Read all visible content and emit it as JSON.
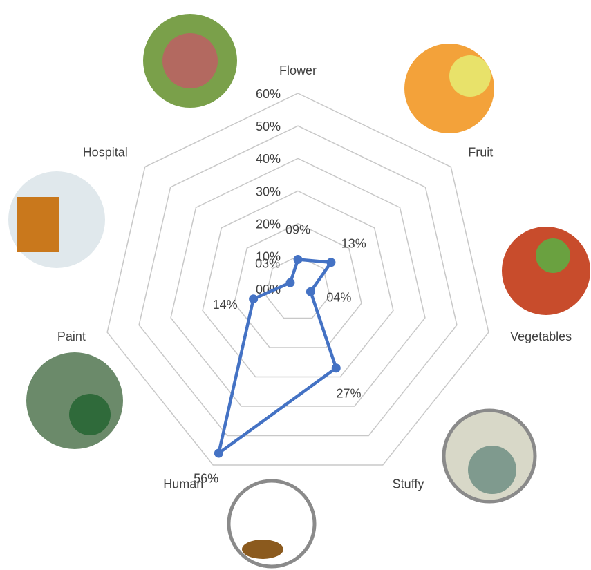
{
  "chart_data": {
    "type": "radar",
    "categories": [
      "Flower",
      "Fruit",
      "Vegetables",
      "Stuffy",
      "Human",
      "Paint",
      "Hospital"
    ],
    "values": [
      9,
      13,
      4,
      27,
      56,
      14,
      3
    ],
    "value_labels": [
      "09%",
      "13%",
      "04%",
      "27%",
      "56%",
      "14%",
      "03%"
    ],
    "color": "#4472c4",
    "ylim": [
      0,
      60
    ],
    "yticks": [
      {
        "value": 0,
        "label": "00%"
      },
      {
        "value": 10,
        "label": "10%"
      },
      {
        "value": 20,
        "label": "20%"
      },
      {
        "value": 30,
        "label": "30%"
      },
      {
        "value": 40,
        "label": "40%"
      },
      {
        "value": 50,
        "label": "50%"
      },
      {
        "value": 60,
        "label": "60%"
      }
    ],
    "grid": true
  }
}
